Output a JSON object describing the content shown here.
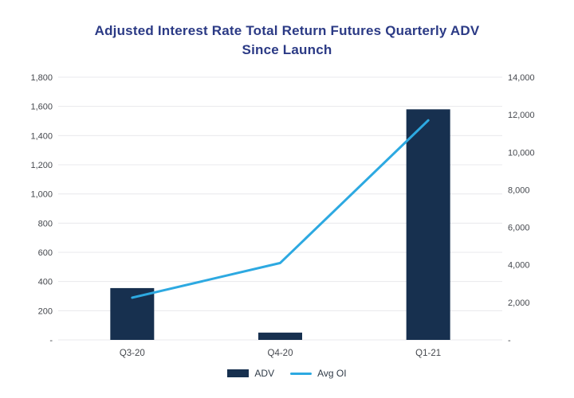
{
  "header": {
    "title_line1": "Adjusted Interest Rate Total Return Futures Quarterly ADV",
    "title_line2": "Since Launch"
  },
  "colors": {
    "title": "#2b3a85",
    "bar": "#17304f",
    "line": "#2da9e1",
    "grid": "#e8e8ec",
    "axis_text": "#45484e",
    "legend_text": "#2f3a47",
    "background": "#ffffff"
  },
  "legend": {
    "items": [
      {
        "label": "ADV",
        "swatch": "bar-swatch-icon"
      },
      {
        "label": "Avg OI",
        "swatch": "line-swatch-icon"
      }
    ]
  },
  "chart_data": {
    "type": "combo",
    "title": "Adjusted Interest Rate Total Return Futures Quarterly ADV Since Launch",
    "categories": [
      "Q3-20",
      "Q4-20",
      "Q1-21"
    ],
    "series": [
      {
        "name": "ADV",
        "type": "bar",
        "axis": "left",
        "color": "#17304f",
        "values": [
          355,
          50,
          1580
        ]
      },
      {
        "name": "Avg OI",
        "type": "line",
        "axis": "right",
        "color": "#2da9e1",
        "values": [
          2250,
          4100,
          11700
        ]
      }
    ],
    "left_axis": {
      "min": 0,
      "max": 1800,
      "step": 200,
      "tick_labels": [
        "-",
        "200",
        "400",
        "600",
        "800",
        "1,000",
        "1,200",
        "1,400",
        "1,600",
        "1,800"
      ]
    },
    "right_axis": {
      "min": 0,
      "max": 14000,
      "step": 2000,
      "tick_labels": [
        "-",
        "2,000",
        "4,000",
        "6,000",
        "8,000",
        "10,000",
        "12,000",
        "14,000"
      ]
    },
    "grid": true,
    "legend_position": "bottom"
  }
}
